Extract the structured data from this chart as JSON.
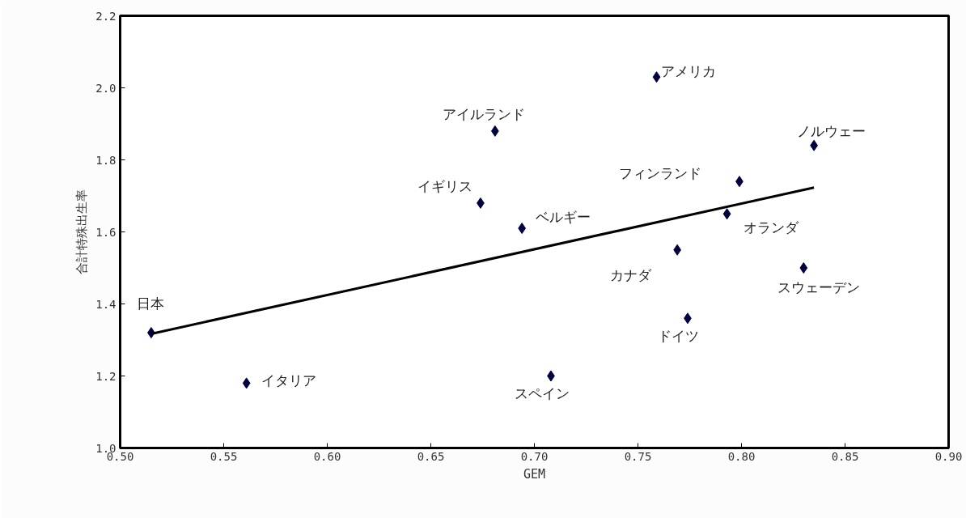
{
  "chart_data": {
    "type": "scatter",
    "xlabel": "GEM",
    "ylabel": "合計特殊出生率",
    "series": [
      {
        "color": "#000040",
        "marker": "diamond",
        "x": [
          0.515,
          0.561,
          0.674,
          0.681,
          0.694,
          0.759,
          0.708,
          0.769,
          0.774,
          0.793,
          0.799,
          0.835,
          0.83
        ],
        "values": [
          1.32,
          1.18,
          1.68,
          1.88,
          1.61,
          2.03,
          1.2,
          1.55,
          1.36,
          1.65,
          1.74,
          1.84,
          1.5
        ]
      },
      {
        "type": "line",
        "color": "#000000",
        "marker": "none",
        "line_style": "solid",
        "x": [
          0.515,
          0.835
        ],
        "values": [
          1.317,
          1.723
        ]
      }
    ],
    "annotations": [
      {
        "text": "日本",
        "x": 0.515,
        "y": 1.32
      },
      {
        "text": "イタリア",
        "x": 0.561,
        "y": 1.18
      },
      {
        "text": "イギリス",
        "x": 0.674,
        "y": 1.68
      },
      {
        "text": "アイルランド",
        "x": 0.681,
        "y": 1.88
      },
      {
        "text": "ベルギー",
        "x": 0.694,
        "y": 1.61
      },
      {
        "text": "アメリカ",
        "x": 0.759,
        "y": 2.03
      },
      {
        "text": "スペイン",
        "x": 0.708,
        "y": 1.2
      },
      {
        "text": "カナダ",
        "x": 0.769,
        "y": 1.55
      },
      {
        "text": "ドイツ",
        "x": 0.774,
        "y": 1.36
      },
      {
        "text": "オランダ",
        "x": 0.793,
        "y": 1.65
      },
      {
        "text": "フィンランド",
        "x": 0.799,
        "y": 1.74
      },
      {
        "text": "ノルウェー",
        "x": 0.835,
        "y": 1.84
      },
      {
        "text": "スウェーデン",
        "x": 0.83,
        "y": 1.5
      }
    ],
    "xlim": [
      0.5,
      0.9
    ],
    "xticks": [
      {
        "value": 0.5,
        "label": "0.50"
      },
      {
        "value": 0.55,
        "label": "0.55"
      },
      {
        "value": 0.6,
        "label": "0.60"
      },
      {
        "value": 0.65,
        "label": "0.65"
      },
      {
        "value": 0.7,
        "label": "0.70"
      },
      {
        "value": 0.75,
        "label": "0.75"
      },
      {
        "value": 0.8,
        "label": "0.80"
      },
      {
        "value": 0.85,
        "label": "0.85"
      },
      {
        "value": 0.9,
        "label": "0.90"
      }
    ],
    "ylim": [
      1.0,
      2.2
    ],
    "yticks": [
      {
        "value": 1.0,
        "label": "1.0"
      },
      {
        "value": 1.2,
        "label": "1.2"
      },
      {
        "value": 1.4,
        "label": "1.4"
      },
      {
        "value": 1.6,
        "label": "1.6"
      },
      {
        "value": 1.8,
        "label": "1.8"
      },
      {
        "value": 2.0,
        "label": "2.0"
      },
      {
        "value": 2.2,
        "label": "2.2"
      }
    ],
    "grid": false
  }
}
